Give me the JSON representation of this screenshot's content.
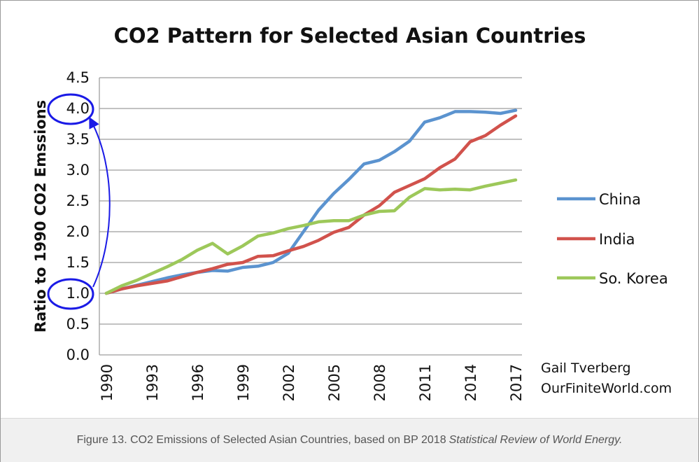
{
  "chart_data": {
    "type": "line",
    "title": "CO2 Pattern for Selected Asian Countries",
    "xlabel": "",
    "ylabel": "Ratio to 1990 CO2 Emssions",
    "ylim": [
      0,
      4.5
    ],
    "yticks": [
      "0.0",
      "0.5",
      "1.0",
      "1.5",
      "2.0",
      "2.5",
      "3.0",
      "3.5",
      "4.0",
      "4.5"
    ],
    "xlim": [
      1990,
      2017
    ],
    "xticks": [
      "1990",
      "1993",
      "1996",
      "1999",
      "2002",
      "2005",
      "2008",
      "2011",
      "2014",
      "2017"
    ],
    "grid": true,
    "legend_position": "right",
    "x": [
      1990,
      1991,
      1992,
      1993,
      1994,
      1995,
      1996,
      1997,
      1998,
      1999,
      2000,
      2001,
      2002,
      2003,
      2004,
      2005,
      2006,
      2007,
      2008,
      2009,
      2010,
      2011,
      2012,
      2013,
      2014,
      2015,
      2016,
      2017
    ],
    "series": [
      {
        "name": "China",
        "color": "#5b93cf",
        "values": [
          1.0,
          1.07,
          1.13,
          1.19,
          1.25,
          1.3,
          1.34,
          1.37,
          1.36,
          1.42,
          1.44,
          1.5,
          1.65,
          2.0,
          2.35,
          2.62,
          2.85,
          3.1,
          3.16,
          3.3,
          3.47,
          3.78,
          3.85,
          3.95,
          3.95,
          3.94,
          3.92,
          3.97
        ]
      },
      {
        "name": "India",
        "color": "#d1524c",
        "values": [
          1.0,
          1.07,
          1.12,
          1.16,
          1.2,
          1.27,
          1.34,
          1.4,
          1.47,
          1.5,
          1.6,
          1.61,
          1.69,
          1.76,
          1.86,
          1.99,
          2.07,
          2.27,
          2.42,
          2.64,
          2.75,
          2.86,
          3.04,
          3.18,
          3.46,
          3.56,
          3.73,
          3.88
        ]
      },
      {
        "name": "So. Korea",
        "color": "#9dc85a",
        "values": [
          1.0,
          1.12,
          1.21,
          1.32,
          1.43,
          1.55,
          1.7,
          1.81,
          1.64,
          1.77,
          1.93,
          1.98,
          2.05,
          2.1,
          2.16,
          2.18,
          2.18,
          2.27,
          2.33,
          2.34,
          2.56,
          2.7,
          2.68,
          2.69,
          2.68,
          2.74,
          2.79,
          2.84
        ]
      }
    ],
    "annotations": [
      {
        "text": "Gail Tverberg"
      },
      {
        "text": "OurFiniteWorld.com"
      }
    ],
    "highlight_color": "#1a1ae6"
  },
  "caption": {
    "main": "Figure 13. CO2 Emissions of Selected Asian Countries, based on BP 2018",
    "italic": "Statistical Review of World Energy."
  }
}
